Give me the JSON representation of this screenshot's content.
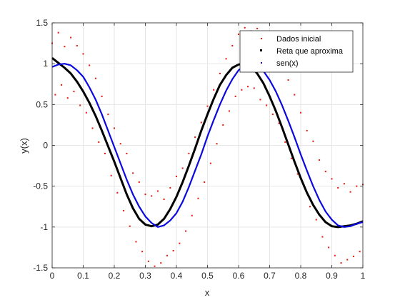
{
  "chart_data": {
    "type": "scatter",
    "title": "",
    "xlabel": "x",
    "ylabel": "y(x)",
    "xlim": [
      0,
      1
    ],
    "ylim": [
      -1.5,
      1.5
    ],
    "x_ticks": [
      0,
      0.1,
      0.2,
      0.3,
      0.4,
      0.5,
      0.6,
      0.7,
      0.8,
      0.9,
      1
    ],
    "x_tick_labels": [
      "0",
      "0.1",
      "0.2",
      "0.3",
      "0.4",
      "0.5",
      "0.6",
      "0.7",
      "0.8",
      "0.9",
      "1"
    ],
    "y_ticks": [
      -1.5,
      -1,
      -0.5,
      0,
      0.5,
      1,
      1.5
    ],
    "y_tick_labels": [
      "-1.5",
      "-1",
      "-0.5",
      "0",
      "0.5",
      "1",
      "1.5"
    ],
    "grid": true,
    "legend_position": "top-right",
    "series": [
      {
        "name": "Dados inicial",
        "color": "#e8150e",
        "marker": "dot",
        "x": [
          0.0,
          0.01,
          0.02,
          0.03,
          0.04,
          0.05,
          0.06,
          0.07,
          0.08,
          0.09,
          0.1,
          0.11,
          0.12,
          0.13,
          0.14,
          0.15,
          0.16,
          0.17,
          0.18,
          0.19,
          0.2,
          0.21,
          0.22,
          0.23,
          0.24,
          0.25,
          0.26,
          0.27,
          0.28,
          0.29,
          0.3,
          0.31,
          0.32,
          0.33,
          0.34,
          0.35,
          0.36,
          0.37,
          0.38,
          0.39,
          0.4,
          0.41,
          0.42,
          0.43,
          0.44,
          0.45,
          0.46,
          0.47,
          0.48,
          0.49,
          0.5,
          0.51,
          0.52,
          0.53,
          0.54,
          0.55,
          0.56,
          0.57,
          0.58,
          0.59,
          0.6,
          0.61,
          0.62,
          0.63,
          0.64,
          0.65,
          0.66,
          0.67,
          0.68,
          0.69,
          0.7,
          0.71,
          0.72,
          0.73,
          0.74,
          0.75,
          0.76,
          0.77,
          0.78,
          0.79,
          0.8,
          0.81,
          0.82,
          0.83,
          0.84,
          0.85,
          0.86,
          0.87,
          0.88,
          0.89,
          0.9,
          0.91,
          0.92,
          0.93,
          0.94,
          0.95,
          0.96,
          0.97,
          0.98,
          0.99,
          1.0
        ],
        "y": [
          1.25,
          0.62,
          1.38,
          0.74,
          1.21,
          0.58,
          1.32,
          0.66,
          1.22,
          0.49,
          1.12,
          0.4,
          0.98,
          0.21,
          0.82,
          0.04,
          0.6,
          -0.1,
          0.38,
          -0.37,
          0.21,
          -0.58,
          0.02,
          -0.8,
          -0.1,
          -0.99,
          -0.34,
          -1.18,
          -0.45,
          -1.3,
          -0.6,
          -1.42,
          -0.62,
          -1.48,
          -0.56,
          -1.44,
          -0.66,
          -1.35,
          -0.52,
          -1.29,
          -0.38,
          -1.2,
          -0.28,
          -1.05,
          -0.1,
          -0.86,
          0.1,
          -0.65,
          0.28,
          -0.45,
          0.48,
          -0.22,
          0.68,
          0.02,
          0.88,
          0.25,
          1.06,
          0.42,
          1.22,
          0.6,
          1.36,
          0.68,
          1.44,
          0.72,
          1.4,
          0.7,
          1.43,
          0.56,
          1.32,
          0.49,
          1.28,
          0.38,
          1.14,
          0.27,
          0.95,
          0.04,
          0.8,
          -0.16,
          0.62,
          -0.35,
          0.4,
          -0.5,
          0.18,
          -0.75,
          0.05,
          -0.91,
          -0.18,
          -1.12,
          -0.32,
          -1.25,
          -0.41,
          -1.35,
          -0.52,
          -1.44,
          -0.47,
          -1.4,
          -0.57,
          -1.36,
          -0.5,
          -1.3,
          -0.48
        ]
      },
      {
        "name": "Reta que aproxima",
        "color": "#000000",
        "marker": "line",
        "x": [
          0.0,
          0.02,
          0.04,
          0.06,
          0.08,
          0.1,
          0.12,
          0.14,
          0.16,
          0.18,
          0.2,
          0.22,
          0.24,
          0.26,
          0.28,
          0.3,
          0.32,
          0.34,
          0.36,
          0.38,
          0.4,
          0.42,
          0.44,
          0.46,
          0.48,
          0.5,
          0.52,
          0.54,
          0.56,
          0.58,
          0.6,
          0.62,
          0.64,
          0.66,
          0.68,
          0.7,
          0.72,
          0.74,
          0.76,
          0.78,
          0.8,
          0.82,
          0.84,
          0.86,
          0.88,
          0.9,
          0.92,
          0.94,
          0.96,
          0.98,
          1.0
        ],
        "y": [
          1.07,
          1.01,
          0.95,
          0.88,
          0.78,
          0.66,
          0.52,
          0.36,
          0.18,
          -0.01,
          -0.2,
          -0.4,
          -0.6,
          -0.77,
          -0.9,
          -0.97,
          -0.99,
          -0.97,
          -0.9,
          -0.78,
          -0.63,
          -0.45,
          -0.25,
          -0.04,
          0.18,
          0.38,
          0.57,
          0.74,
          0.86,
          0.95,
          0.99,
          1.0,
          0.96,
          0.88,
          0.76,
          0.6,
          0.42,
          0.22,
          0.01,
          -0.2,
          -0.4,
          -0.58,
          -0.73,
          -0.85,
          -0.94,
          -0.99,
          -1.0,
          -0.99,
          -0.98,
          -0.96,
          -0.93
        ]
      },
      {
        "name": "sen(x)",
        "color": "#0a0ae0",
        "marker": "line",
        "x": [
          0.0,
          0.02,
          0.04,
          0.06,
          0.08,
          0.1,
          0.12,
          0.14,
          0.16,
          0.18,
          0.2,
          0.22,
          0.24,
          0.26,
          0.28,
          0.3,
          0.32,
          0.34,
          0.36,
          0.38,
          0.4,
          0.42,
          0.44,
          0.46,
          0.48,
          0.5,
          0.52,
          0.54,
          0.56,
          0.58,
          0.6,
          0.62,
          0.64,
          0.66,
          0.68,
          0.7,
          0.72,
          0.74,
          0.76,
          0.78,
          0.8,
          0.82,
          0.84,
          0.86,
          0.88,
          0.9,
          0.92,
          0.94,
          0.96,
          0.98,
          1.0
        ],
        "y": [
          0.96,
          0.99,
          1.0,
          0.98,
          0.92,
          0.84,
          0.71,
          0.56,
          0.38,
          0.18,
          -0.02,
          -0.22,
          -0.42,
          -0.6,
          -0.75,
          -0.87,
          -0.95,
          -1.0,
          -0.98,
          -0.92,
          -0.83,
          -0.69,
          -0.51,
          -0.31,
          -0.11,
          0.11,
          0.31,
          0.5,
          0.67,
          0.81,
          0.92,
          0.98,
          1.0,
          0.98,
          0.91,
          0.8,
          0.66,
          0.49,
          0.3,
          0.1,
          -0.11,
          -0.31,
          -0.5,
          -0.67,
          -0.81,
          -0.91,
          -0.98,
          -1.0,
          -0.99,
          -0.96,
          -0.94
        ]
      }
    ]
  }
}
